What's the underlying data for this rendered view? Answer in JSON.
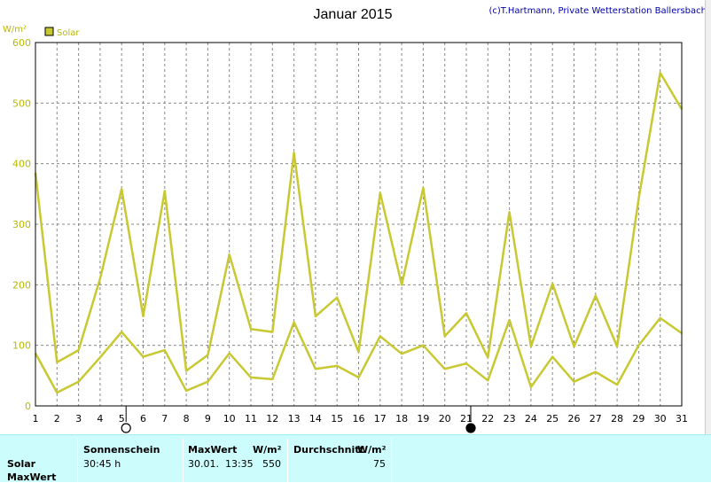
{
  "header": {
    "title": "Januar 2015",
    "credit": "(c)T.Hartmann, Private Wetterstation Ballersbach"
  },
  "chart_data": {
    "type": "line",
    "title": "Januar 2015",
    "ylabel": "W/m²",
    "ylim": [
      0,
      600
    ],
    "yticks": [
      "0",
      "100",
      "200",
      "300",
      "400",
      "500",
      "600"
    ],
    "x": [
      "1",
      "2",
      "3",
      "4",
      "5",
      "6",
      "7",
      "8",
      "9",
      "10",
      "11",
      "12",
      "13",
      "14",
      "15",
      "16",
      "17",
      "18",
      "19",
      "20",
      "21",
      "22",
      "23",
      "24",
      "25",
      "26",
      "27",
      "28",
      "29",
      "30",
      "31"
    ],
    "legend": "Solar",
    "series": [
      {
        "name": "Solar",
        "values": [
          385,
          72,
          92,
          210,
          358,
          148,
          355,
          58,
          84,
          250,
          127,
          122,
          418,
          148,
          179,
          89,
          352,
          200,
          360,
          115,
          153,
          80,
          320,
          98,
          202,
          98,
          182,
          98,
          342,
          550,
          490
        ]
      },
      {
        "values": [
          87,
          22,
          40,
          80,
          122,
          81,
          92,
          25,
          40,
          87,
          47,
          44,
          138,
          61,
          66,
          47,
          115,
          86,
          100,
          61,
          70,
          42,
          142,
          31,
          81,
          40,
          56,
          35,
          100,
          145,
          120
        ]
      }
    ],
    "grid": true,
    "colors": {
      "line": "#c8c832",
      "background": "#ffffff",
      "grid": "#888888"
    },
    "moon_phases": [
      {
        "day": "5",
        "phase": "full-moon-icon"
      },
      {
        "day": "21",
        "phase": "new-moon-icon"
      }
    ]
  },
  "stats": {
    "row_labels": [
      "Solar",
      "MaxWert"
    ],
    "sonnenschein_header": "Sonnenschein",
    "sonnenschein_value": "30:45 h",
    "maxwert_header": "MaxWert",
    "maxwert_unit": "W/m²",
    "maxwert_datetime": "30.01.  13:35",
    "maxwert_value": "550",
    "durchschnitt_header": "Durchschnitt",
    "durchschnitt_unit": "W/m²",
    "durchschnitt_value": "75"
  }
}
